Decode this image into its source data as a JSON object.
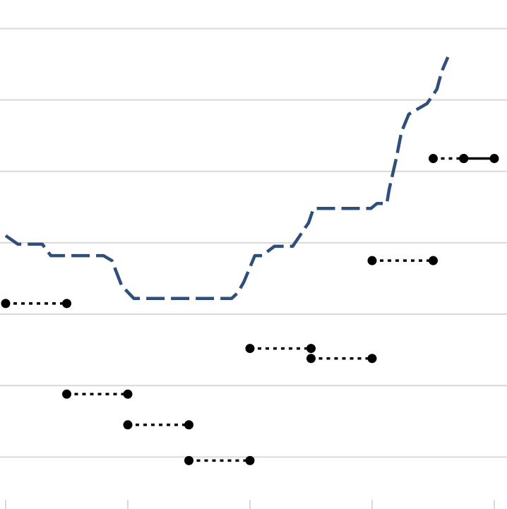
{
  "chart_data": {
    "type": "line",
    "title": "",
    "xlabel": "",
    "ylabel": "",
    "xlim": [
      0,
      4.1
    ],
    "ylim": [
      0.4,
      7.4
    ],
    "grid": true,
    "legend": "none",
    "colors": {
      "line": "#2f4f7a",
      "segments": "#000000",
      "grid": "#d9d9d9"
    },
    "series": [
      {
        "x": [
          0.0,
          0.1,
          0.3,
          0.37,
          0.8,
          0.87,
          0.95,
          1.05,
          1.85,
          1.9,
          1.95,
          2.04,
          2.1,
          2.2,
          2.35,
          2.48,
          2.52,
          2.6,
          2.99,
          3.04,
          3.12,
          3.14,
          3.2,
          3.24,
          3.3,
          3.45,
          3.53,
          3.57,
          3.62
        ],
        "y": [
          4.1,
          3.98,
          3.98,
          3.82,
          3.82,
          3.75,
          3.4,
          3.22,
          3.22,
          3.3,
          3.45,
          3.82,
          3.82,
          3.95,
          3.95,
          4.28,
          4.48,
          4.48,
          4.48,
          4.55,
          4.55,
          4.75,
          5.2,
          5.55,
          5.8,
          5.95,
          6.15,
          6.4,
          6.6
        ]
      }
    ],
    "segments": [
      {
        "x": [
          0.0,
          0.5
        ],
        "y": [
          3.15,
          3.15
        ],
        "style": "dotted"
      },
      {
        "x": [
          0.5,
          1.0
        ],
        "y": [
          1.88,
          1.88
        ],
        "style": "dotted"
      },
      {
        "x": [
          1.0,
          1.5
        ],
        "y": [
          1.45,
          1.45
        ],
        "style": "dotted"
      },
      {
        "x": [
          1.5,
          2.0
        ],
        "y": [
          0.95,
          0.95
        ],
        "style": "dotted"
      },
      {
        "x": [
          2.0,
          2.5
        ],
        "y": [
          2.52,
          2.52
        ],
        "style": "dotted"
      },
      {
        "x": [
          2.5,
          3.0
        ],
        "y": [
          2.38,
          2.38
        ],
        "style": "dotted"
      },
      {
        "x": [
          3.0,
          3.5
        ],
        "y": [
          3.75,
          3.75
        ],
        "style": "dotted"
      },
      {
        "x": [
          3.5,
          3.75
        ],
        "y": [
          5.18,
          5.18
        ],
        "style": "dotted"
      },
      {
        "x": [
          3.75,
          4.0
        ],
        "y": [
          5.18,
          5.18
        ],
        "style": "solid"
      }
    ]
  }
}
